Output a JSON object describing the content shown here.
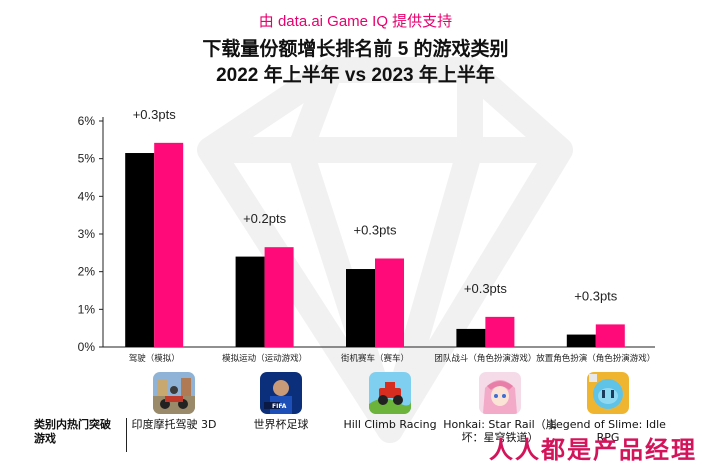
{
  "header": {
    "source": "由 data.ai Game IQ 提供支持",
    "title_line1": "下载量份额增长排名前 5 的游戏类别",
    "title_line2": "2022 年上半年 vs 2023 年上半年"
  },
  "chart_data": {
    "type": "bar",
    "categories": [
      "驾驶（模拟）",
      "模拟运动（运动游戏）",
      "街机赛车（赛车）",
      "团队战斗（角色扮演游戏）",
      "放置角色扮演（角色扮演游戏）"
    ],
    "series": [
      {
        "name": "2022 年上半年",
        "color": "#000000",
        "values": [
          5.15,
          2.4,
          2.07,
          0.48,
          0.33
        ]
      },
      {
        "name": "2023 年上半年",
        "color": "#ff0a78",
        "values": [
          5.42,
          2.65,
          2.35,
          0.8,
          0.6
        ]
      }
    ],
    "annotations": [
      "+0.3pts",
      "+0.2pts",
      "+0.3pts",
      "+0.3pts",
      "+0.3pts"
    ],
    "yticks": [
      "0%",
      "1%",
      "2%",
      "3%",
      "4%",
      "5%",
      "6%"
    ],
    "ylim": [
      0,
      6
    ],
    "grid": false,
    "legend": "none"
  },
  "games_row": {
    "label": "类别内热门突破游戏",
    "games": [
      {
        "name": "印度摩托驾驶 3D",
        "icon": "motorbike-game-icon"
      },
      {
        "name": "世界杯足球",
        "icon": "fifa-game-icon"
      },
      {
        "name": "Hill Climb Racing",
        "icon": "hill-climb-game-icon"
      },
      {
        "name": "Honkai: Star Rail（崩坏：星穹铁道）",
        "icon": "honkai-game-icon"
      },
      {
        "name": "Legend of Slime: Idle RPG",
        "icon": "slime-game-icon"
      }
    ]
  },
  "logo": {
    "text": "人人都是产品经理"
  },
  "colors": {
    "accent": "#ff0a78",
    "title": "#111111",
    "source": "#e8006f"
  }
}
